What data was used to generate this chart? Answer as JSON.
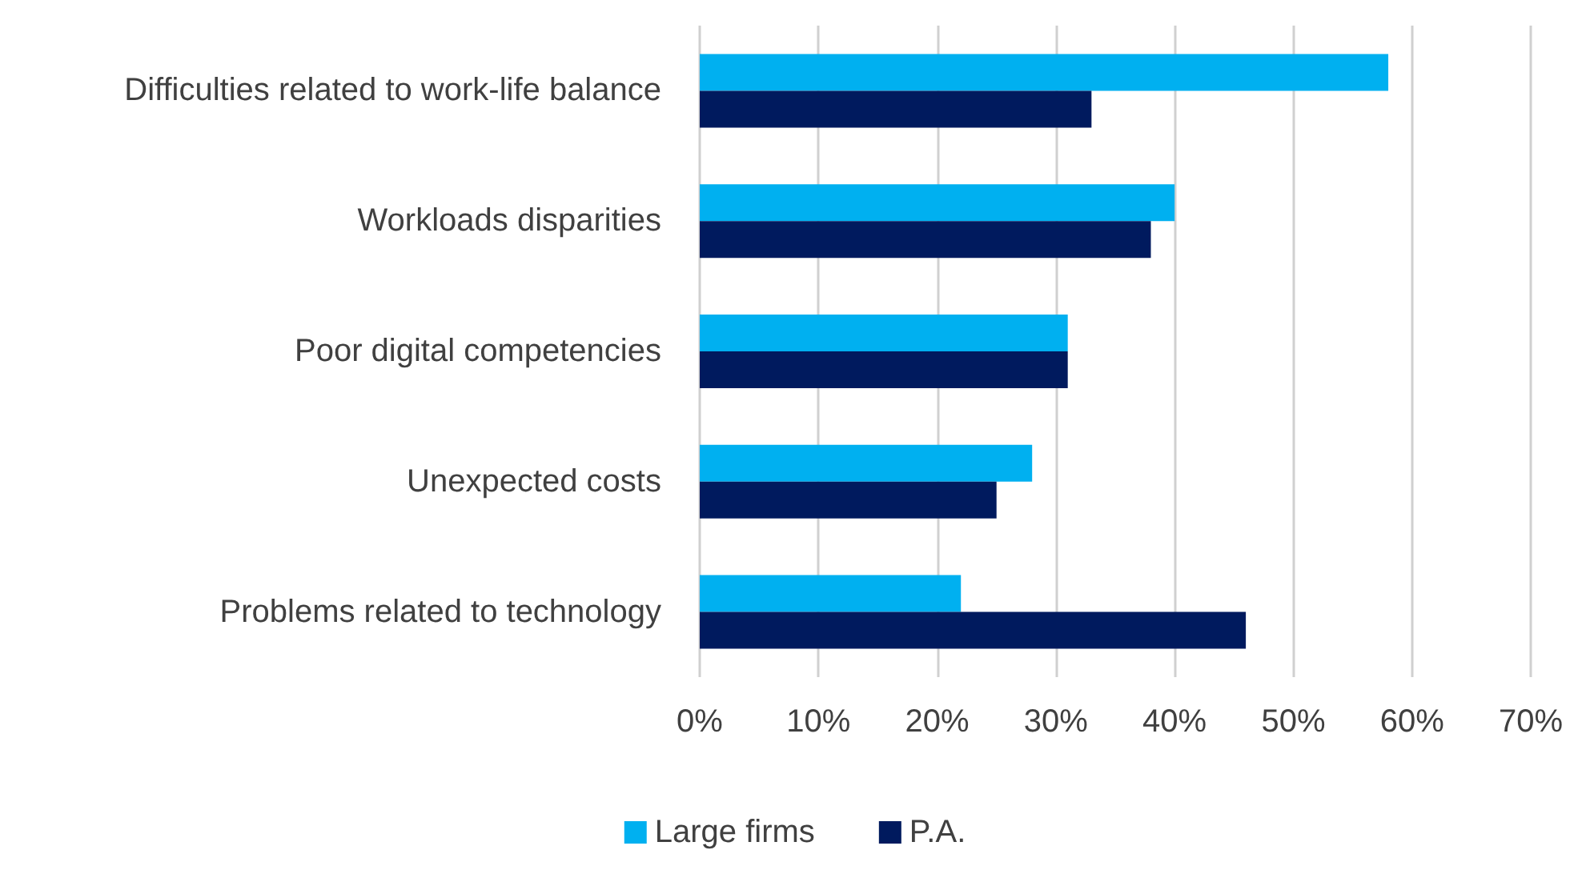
{
  "chart_data": {
    "type": "bar",
    "orientation": "horizontal",
    "categories": [
      "Difficulties related to work-life balance",
      "Workloads disparities",
      "Poor digital competencies",
      "Unexpected costs",
      "Problems related to technology"
    ],
    "series": [
      {
        "name": "Large firms",
        "color": "#00b0f0",
        "values": [
          58,
          40,
          31,
          28,
          22
        ]
      },
      {
        "name": "P.A.",
        "color": "#001a5e",
        "values": [
          33,
          38,
          31,
          25,
          46
        ]
      }
    ],
    "xlim": [
      0,
      70
    ],
    "xticks": [
      {
        "value": 0,
        "label": "0%"
      },
      {
        "value": 10,
        "label": "10%"
      },
      {
        "value": 20,
        "label": "20%"
      },
      {
        "value": 30,
        "label": "30%"
      },
      {
        "value": 40,
        "label": "40%"
      },
      {
        "value": 50,
        "label": "50%"
      },
      {
        "value": 60,
        "label": "60%"
      },
      {
        "value": 70,
        "label": "70%"
      }
    ],
    "grid": "x",
    "legend": "bottom"
  }
}
